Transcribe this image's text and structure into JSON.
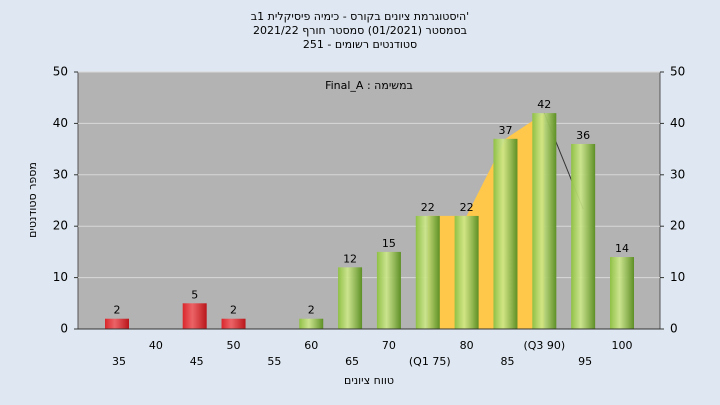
{
  "chart_data": {
    "type": "bar",
    "title": [
      "'היסטוגרמת ציונים בקורס - כימיה פיסיקלית 1ב",
      "בסמסטר  (01/2021)  סמסטר חורף 2021/22",
      "סטודנטים רשומים - 251"
    ],
    "annotation": "במשימה : Final_A",
    "xlabel": "טווח ציונים",
    "ylabel": "מספר סטודנטים",
    "categories": [
      "35",
      "40",
      "45",
      "50",
      "55",
      "60",
      "65",
      "70",
      "(Q1 75)",
      "80",
      "85",
      "(Q3 90)",
      "95",
      "100"
    ],
    "values": [
      2,
      null,
      5,
      2,
      null,
      2,
      12,
      15,
      22,
      22,
      37,
      42,
      36,
      14
    ],
    "colors": [
      "#d9262b",
      "#d9262b",
      "#d9262b",
      "#d9262b",
      "#d9262b",
      "#8fc045",
      "#8fc045",
      "#8fc045",
      "#8fc045",
      "#8fc045",
      "#8fc045",
      "#8fc045",
      "#8fc045",
      "#8fc045"
    ],
    "ylim": [
      0,
      50
    ],
    "yticks": [
      0,
      10,
      20,
      30,
      40,
      50
    ],
    "y2lim": [
      0,
      50
    ],
    "y2ticks": [
      0,
      10,
      20,
      30,
      40,
      50
    ],
    "grid": true
  }
}
